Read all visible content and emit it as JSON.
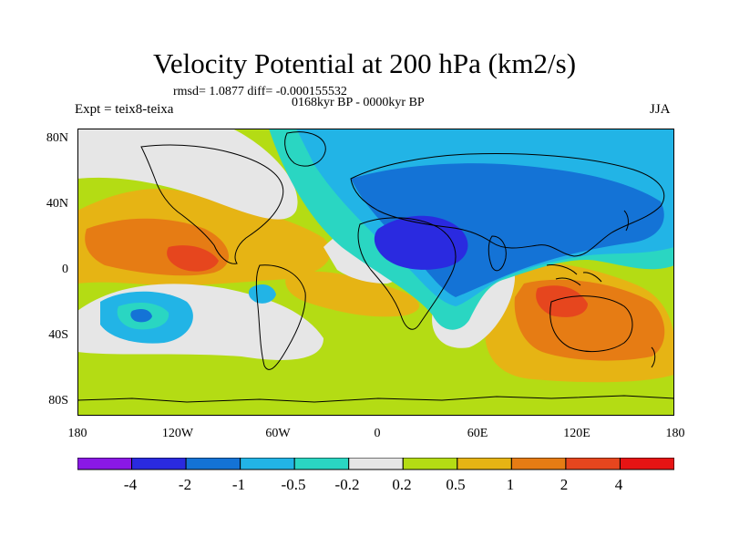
{
  "title": "Velocity Potential at 200 hPa (km2/s)",
  "stats": "rmsd= 1.0877 diff= -0.000155532",
  "period": "0168kyr BP - 0000kyr BP",
  "expt": "Expt = teix8-teixa",
  "season": "JJA",
  "axes": {
    "y_ticks": [
      "80N",
      "40N",
      "0",
      "40S",
      "80S"
    ],
    "x_ticks": [
      "180",
      "120W",
      "60W",
      "0",
      "60E",
      "120E",
      "180"
    ]
  },
  "colorbar": {
    "labels": [
      "-4",
      "-2",
      "-1",
      "-0.5",
      "-0.2",
      "0.2",
      "0.5",
      "1",
      "2",
      "4"
    ],
    "colors": [
      "#8a18e6",
      "#2a2ae0",
      "#1473d6",
      "#22b4e6",
      "#2ad6c2",
      "#e6e6e6",
      "#b4dc14",
      "#e6b414",
      "#e67c14",
      "#e6461e",
      "#e61414"
    ]
  },
  "colors": {
    "lt_neg_4": "#8a18e6",
    "neg_4_to_neg_2": "#2a2ae0",
    "neg_2_to_neg_1": "#1473d6",
    "neg_1_to_neg_0_5": "#22b4e6",
    "neg_0_5_to_neg_0_2": "#2ad6c2",
    "neg_0_2_to_0_2": "#e6e6e6",
    "pos_0_2_to_0_5": "#b4dc14",
    "pos_0_5_to_1": "#e6b414",
    "pos_1_to_2": "#e67c14",
    "pos_2_to_4": "#e6461e",
    "gt_4": "#e61414"
  }
}
